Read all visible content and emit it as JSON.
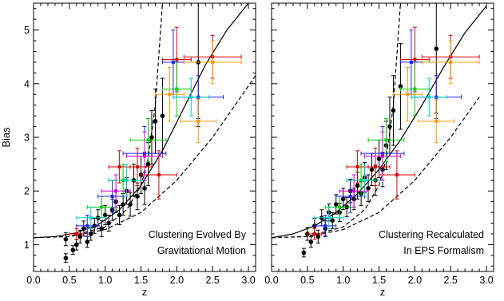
{
  "chart_data": [
    {
      "type": "scatter",
      "xlabel": "z",
      "ylabel": "Bias",
      "xlim": [
        0.0,
        3.1
      ],
      "ylim": [
        0.5,
        5.5
      ],
      "xticks": [
        "0.0",
        "0.5",
        "1.0",
        "1.5",
        "2.0",
        "2.5",
        "3.0"
      ],
      "yticks": [
        "1",
        "2",
        "3",
        "4",
        "5"
      ],
      "annotation": [
        "Clustering Evolved By",
        "Gravitational Motion"
      ],
      "grid": false,
      "curves": [
        {
          "style": "solid",
          "x": [
            0.0,
            0.3,
            0.6,
            0.9,
            1.2,
            1.5,
            1.8,
            2.1,
            2.4,
            2.7,
            3.0
          ],
          "y": [
            1.13,
            1.15,
            1.22,
            1.37,
            1.65,
            2.1,
            2.75,
            3.55,
            4.35,
            5.0,
            5.5
          ]
        },
        {
          "style": "dashed",
          "x": [
            0.0,
            0.5,
            1.0,
            1.3,
            1.5,
            1.6,
            1.7,
            1.8
          ],
          "y": [
            1.13,
            1.15,
            1.33,
            1.65,
            2.1,
            2.6,
            3.6,
            5.5
          ]
        },
        {
          "style": "dashed",
          "x": [
            0.0,
            0.5,
            1.0,
            1.5,
            2.0,
            2.5,
            3.1
          ],
          "y": [
            1.13,
            1.15,
            1.28,
            1.6,
            2.2,
            3.0,
            4.15
          ]
        }
      ],
      "series": [
        {
          "name": "black",
          "color": "#000000",
          "points": [
            {
              "x": 0.45,
              "y": 0.75,
              "xerr": 0.02,
              "yerr": 0.08
            },
            {
              "x": 0.45,
              "y": 1.1,
              "xerr": 0.02,
              "yerr": 0.12
            },
            {
              "x": 0.55,
              "y": 0.9,
              "xerr": 0.02,
              "yerr": 0.08
            },
            {
              "x": 0.6,
              "y": 1.0,
              "xerr": 0.02,
              "yerr": 0.1
            },
            {
              "x": 0.65,
              "y": 1.15,
              "xerr": 0.02,
              "yerr": 0.12
            },
            {
              "x": 0.7,
              "y": 1.3,
              "xerr": 0.02,
              "yerr": 0.14
            },
            {
              "x": 0.75,
              "y": 1.05,
              "xerr": 0.02,
              "yerr": 0.1
            },
            {
              "x": 0.8,
              "y": 1.2,
              "xerr": 0.02,
              "yerr": 0.12
            },
            {
              "x": 0.85,
              "y": 1.35,
              "xerr": 0.02,
              "yerr": 0.14
            },
            {
              "x": 0.9,
              "y": 1.5,
              "xerr": 0.02,
              "yerr": 0.15
            },
            {
              "x": 0.95,
              "y": 1.3,
              "xerr": 0.02,
              "yerr": 0.15
            },
            {
              "x": 1.0,
              "y": 1.55,
              "xerr": 0.02,
              "yerr": 0.18
            },
            {
              "x": 1.05,
              "y": 1.4,
              "xerr": 0.02,
              "yerr": 0.15
            },
            {
              "x": 1.1,
              "y": 1.65,
              "xerr": 0.02,
              "yerr": 0.2
            },
            {
              "x": 1.15,
              "y": 1.8,
              "xerr": 0.02,
              "yerr": 0.2
            },
            {
              "x": 1.2,
              "y": 1.55,
              "xerr": 0.02,
              "yerr": 0.18
            },
            {
              "x": 1.25,
              "y": 1.75,
              "xerr": 0.02,
              "yerr": 0.2
            },
            {
              "x": 1.3,
              "y": 2.0,
              "xerr": 0.02,
              "yerr": 0.25
            },
            {
              "x": 1.35,
              "y": 1.75,
              "xerr": 0.02,
              "yerr": 0.22
            },
            {
              "x": 1.4,
              "y": 2.2,
              "xerr": 0.02,
              "yerr": 0.3
            },
            {
              "x": 1.45,
              "y": 1.9,
              "xerr": 0.02,
              "yerr": 0.25
            },
            {
              "x": 1.5,
              "y": 2.3,
              "xerr": 0.02,
              "yerr": 0.35
            },
            {
              "x": 1.55,
              "y": 2.05,
              "xerr": 0.02,
              "yerr": 0.3
            },
            {
              "x": 1.6,
              "y": 2.5,
              "xerr": 0.02,
              "yerr": 0.4
            },
            {
              "x": 1.65,
              "y": 3.0,
              "xerr": 0.02,
              "yerr": 0.5
            },
            {
              "x": 1.7,
              "y": 3.3,
              "xerr": 0.02,
              "yerr": 0.6
            },
            {
              "x": 1.8,
              "y": 3.4,
              "xerr": 0.02,
              "yerr": 0.7
            },
            {
              "x": 2.3,
              "y": 4.4,
              "xerr": 0.02,
              "yerr": 1.2
            }
          ]
        },
        {
          "name": "red",
          "color": "#e00000",
          "points": [
            {
              "x": 0.6,
              "y": 1.2,
              "xerr": 0.1,
              "yerr": 0.1
            },
            {
              "x": 1.2,
              "y": 2.45,
              "xerr": 0.15,
              "yerr": 0.3
            },
            {
              "x": 1.45,
              "y": 2.45,
              "xerr": 0.2,
              "yerr": 0.35
            },
            {
              "x": 1.75,
              "y": 2.3,
              "xerr": 0.25,
              "yerr": 0.45
            },
            {
              "x": 2.0,
              "y": 4.45,
              "xerr": 0.2,
              "yerr": 0.6
            },
            {
              "x": 2.5,
              "y": 4.5,
              "xerr": 0.4,
              "yerr": 0.4
            }
          ]
        },
        {
          "name": "green",
          "color": "#00d000",
          "points": [
            {
              "x": 0.95,
              "y": 1.7,
              "xerr": 0.2,
              "yerr": 0.2
            },
            {
              "x": 1.25,
              "y": 2.2,
              "xerr": 0.2,
              "yerr": 0.3
            },
            {
              "x": 1.6,
              "y": 2.95,
              "xerr": 0.25,
              "yerr": 0.4
            },
            {
              "x": 2.0,
              "y": 3.9,
              "xerr": 0.2,
              "yerr": 0.5
            }
          ]
        },
        {
          "name": "blue",
          "color": "#2020ff",
          "points": [
            {
              "x": 0.75,
              "y": 1.35,
              "xerr": 0.15,
              "yerr": 0.2
            },
            {
              "x": 1.1,
              "y": 1.9,
              "xerr": 0.2,
              "yerr": 0.3
            },
            {
              "x": 1.55,
              "y": 2.7,
              "xerr": 0.3,
              "yerr": 0.5
            },
            {
              "x": 1.95,
              "y": 4.4,
              "xerr": 0.15,
              "yerr": 0.6
            },
            {
              "x": 2.3,
              "y": 3.75,
              "xerr": 0.35,
              "yerr": 0.4
            }
          ]
        },
        {
          "name": "cyan",
          "color": "#00d0d0",
          "points": [
            {
              "x": 0.8,
              "y": 1.5,
              "xerr": 0.2,
              "yerr": 0.2
            },
            {
              "x": 1.3,
              "y": 2.2,
              "xerr": 0.25,
              "yerr": 0.3
            },
            {
              "x": 2.2,
              "y": 3.75,
              "xerr": 0.25,
              "yerr": 0.35
            }
          ]
        },
        {
          "name": "magenta",
          "color": "#d000d0",
          "points": [
            {
              "x": 1.15,
              "y": 2.0,
              "xerr": 0.2,
              "yerr": 0.3
            },
            {
              "x": 1.55,
              "y": 2.65,
              "xerr": 0.25,
              "yerr": 0.45
            }
          ]
        },
        {
          "name": "orange",
          "color": "#ff9900",
          "points": [
            {
              "x": 1.9,
              "y": 3.8,
              "xerr": 0.2,
              "yerr": 0.5
            },
            {
              "x": 2.3,
              "y": 3.3,
              "xerr": 0.25,
              "yerr": 0.4
            },
            {
              "x": 2.5,
              "y": 4.4,
              "xerr": 0.4,
              "yerr": 0.4
            }
          ]
        }
      ]
    },
    {
      "type": "scatter",
      "xlabel": "z",
      "ylabel": "",
      "xlim": [
        0.0,
        3.1
      ],
      "ylim": [
        0.5,
        5.5
      ],
      "xticks": [
        "0.0",
        "0.5",
        "1.0",
        "1.5",
        "2.0",
        "2.5",
        "3.0"
      ],
      "yticks": [],
      "annotation": [
        "Clustering Recalculated",
        "In EPS Formalism"
      ],
      "grid": false,
      "curves": [
        {
          "style": "solid",
          "x": [
            0.0,
            0.3,
            0.6,
            0.9,
            1.2,
            1.5,
            1.8,
            2.1,
            2.4,
            2.7,
            3.0
          ],
          "y": [
            1.13,
            1.2,
            1.35,
            1.6,
            1.95,
            2.4,
            2.95,
            3.6,
            4.3,
            4.95,
            5.45
          ]
        },
        {
          "style": "dashed",
          "x": [
            0.0,
            0.5,
            1.0,
            1.3,
            1.5,
            1.6,
            1.7,
            1.8
          ],
          "y": [
            1.13,
            1.15,
            1.33,
            1.65,
            2.1,
            2.6,
            3.6,
            5.5
          ]
        },
        {
          "style": "dashed",
          "x": [
            0.0,
            0.5,
            1.0,
            1.5,
            2.0,
            2.5,
            2.9
          ],
          "y": [
            1.13,
            1.15,
            1.28,
            1.6,
            2.2,
            3.0,
            3.75
          ]
        }
      ],
      "series": [
        {
          "name": "black",
          "color": "#000000",
          "points": [
            {
              "x": 0.45,
              "y": 0.85,
              "xerr": 0.02,
              "yerr": 0.08
            },
            {
              "x": 0.5,
              "y": 1.2,
              "xerr": 0.02,
              "yerr": 0.12
            },
            {
              "x": 0.55,
              "y": 1.05,
              "xerr": 0.02,
              "yerr": 0.1
            },
            {
              "x": 0.6,
              "y": 1.35,
              "xerr": 0.02,
              "yerr": 0.14
            },
            {
              "x": 0.65,
              "y": 1.15,
              "xerr": 0.02,
              "yerr": 0.12
            },
            {
              "x": 0.7,
              "y": 1.5,
              "xerr": 0.02,
              "yerr": 0.15
            },
            {
              "x": 0.75,
              "y": 1.3,
              "xerr": 0.02,
              "yerr": 0.14
            },
            {
              "x": 0.8,
              "y": 1.6,
              "xerr": 0.02,
              "yerr": 0.16
            },
            {
              "x": 0.85,
              "y": 1.45,
              "xerr": 0.02,
              "yerr": 0.15
            },
            {
              "x": 0.9,
              "y": 1.75,
              "xerr": 0.02,
              "yerr": 0.18
            },
            {
              "x": 0.95,
              "y": 1.6,
              "xerr": 0.02,
              "yerr": 0.17
            },
            {
              "x": 1.0,
              "y": 1.85,
              "xerr": 0.02,
              "yerr": 0.2
            },
            {
              "x": 1.05,
              "y": 1.7,
              "xerr": 0.02,
              "yerr": 0.18
            },
            {
              "x": 1.1,
              "y": 2.0,
              "xerr": 0.02,
              "yerr": 0.22
            },
            {
              "x": 1.15,
              "y": 1.85,
              "xerr": 0.02,
              "yerr": 0.2
            },
            {
              "x": 1.2,
              "y": 2.1,
              "xerr": 0.02,
              "yerr": 0.25
            },
            {
              "x": 1.25,
              "y": 1.95,
              "xerr": 0.02,
              "yerr": 0.22
            },
            {
              "x": 1.3,
              "y": 2.25,
              "xerr": 0.02,
              "yerr": 0.28
            },
            {
              "x": 1.35,
              "y": 2.05,
              "xerr": 0.02,
              "yerr": 0.25
            },
            {
              "x": 1.4,
              "y": 2.4,
              "xerr": 0.02,
              "yerr": 0.3
            },
            {
              "x": 1.45,
              "y": 2.2,
              "xerr": 0.02,
              "yerr": 0.28
            },
            {
              "x": 1.5,
              "y": 2.6,
              "xerr": 0.02,
              "yerr": 0.35
            },
            {
              "x": 1.55,
              "y": 2.4,
              "xerr": 0.02,
              "yerr": 0.32
            },
            {
              "x": 1.6,
              "y": 2.85,
              "xerr": 0.02,
              "yerr": 0.45
            },
            {
              "x": 1.65,
              "y": 3.2,
              "xerr": 0.02,
              "yerr": 0.55
            },
            {
              "x": 1.7,
              "y": 3.5,
              "xerr": 0.02,
              "yerr": 0.65
            },
            {
              "x": 1.8,
              "y": 3.95,
              "xerr": 0.02,
              "yerr": 0.8
            },
            {
              "x": 2.3,
              "y": 4.65,
              "xerr": 0.02,
              "yerr": 1.2
            }
          ]
        },
        {
          "name": "red",
          "color": "#e00000",
          "points": [
            {
              "x": 0.6,
              "y": 1.2,
              "xerr": 0.1,
              "yerr": 0.1
            },
            {
              "x": 1.2,
              "y": 2.45,
              "xerr": 0.15,
              "yerr": 0.3
            },
            {
              "x": 1.45,
              "y": 2.45,
              "xerr": 0.2,
              "yerr": 0.35
            },
            {
              "x": 1.75,
              "y": 2.3,
              "xerr": 0.25,
              "yerr": 0.45
            },
            {
              "x": 2.0,
              "y": 4.45,
              "xerr": 0.2,
              "yerr": 0.6
            },
            {
              "x": 2.5,
              "y": 4.5,
              "xerr": 0.4,
              "yerr": 0.4
            }
          ]
        },
        {
          "name": "green",
          "color": "#00d000",
          "points": [
            {
              "x": 0.95,
              "y": 1.7,
              "xerr": 0.2,
              "yerr": 0.2
            },
            {
              "x": 1.25,
              "y": 2.2,
              "xerr": 0.2,
              "yerr": 0.3
            },
            {
              "x": 1.6,
              "y": 2.95,
              "xerr": 0.25,
              "yerr": 0.4
            },
            {
              "x": 2.0,
              "y": 3.9,
              "xerr": 0.2,
              "yerr": 0.5
            }
          ]
        },
        {
          "name": "blue",
          "color": "#2020ff",
          "points": [
            {
              "x": 0.75,
              "y": 1.35,
              "xerr": 0.15,
              "yerr": 0.2
            },
            {
              "x": 1.1,
              "y": 1.9,
              "xerr": 0.2,
              "yerr": 0.3
            },
            {
              "x": 1.55,
              "y": 2.7,
              "xerr": 0.3,
              "yerr": 0.5
            },
            {
              "x": 1.95,
              "y": 4.4,
              "xerr": 0.15,
              "yerr": 0.6
            },
            {
              "x": 2.3,
              "y": 3.75,
              "xerr": 0.35,
              "yerr": 0.4
            }
          ]
        },
        {
          "name": "cyan",
          "color": "#00d0d0",
          "points": [
            {
              "x": 0.8,
              "y": 1.5,
              "xerr": 0.2,
              "yerr": 0.2
            },
            {
              "x": 1.3,
              "y": 2.2,
              "xerr": 0.25,
              "yerr": 0.3
            },
            {
              "x": 2.2,
              "y": 3.75,
              "xerr": 0.25,
              "yerr": 0.35
            }
          ]
        },
        {
          "name": "magenta",
          "color": "#d000d0",
          "points": [
            {
              "x": 1.15,
              "y": 2.0,
              "xerr": 0.2,
              "yerr": 0.3
            },
            {
              "x": 1.55,
              "y": 2.65,
              "xerr": 0.25,
              "yerr": 0.45
            }
          ]
        },
        {
          "name": "orange",
          "color": "#ff9900",
          "points": [
            {
              "x": 1.9,
              "y": 3.8,
              "xerr": 0.2,
              "yerr": 0.5
            },
            {
              "x": 2.3,
              "y": 3.3,
              "xerr": 0.25,
              "yerr": 0.4
            },
            {
              "x": 2.5,
              "y": 4.4,
              "xerr": 0.4,
              "yerr": 0.4
            }
          ]
        }
      ]
    }
  ]
}
